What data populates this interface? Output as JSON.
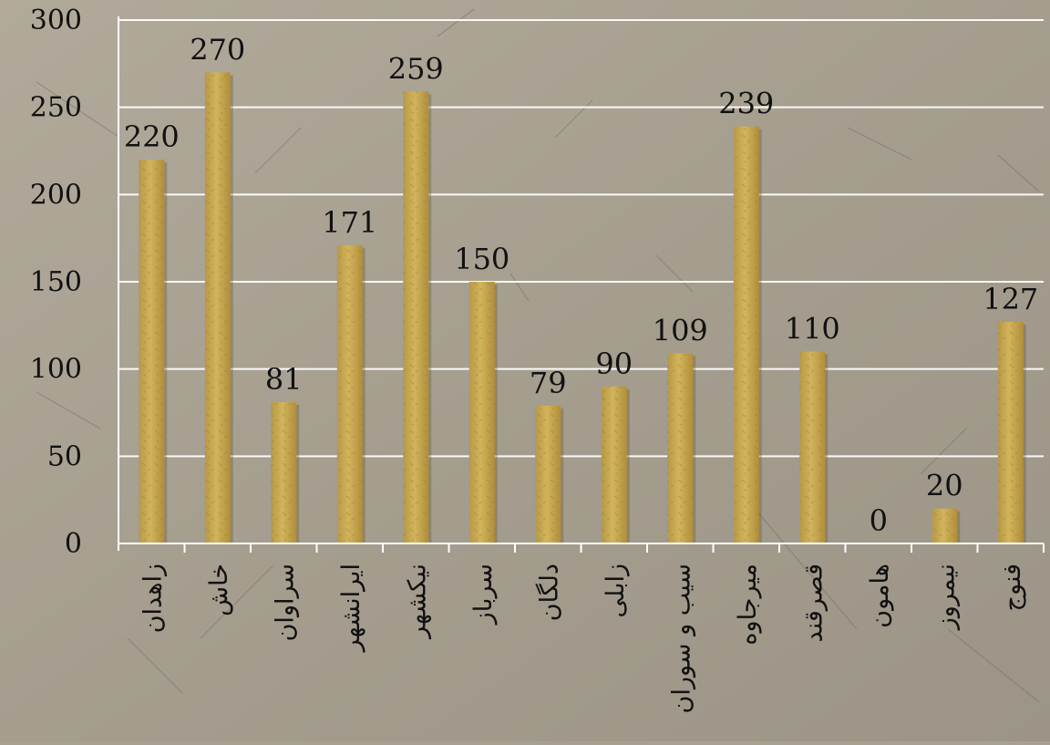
{
  "chart_data": {
    "type": "bar",
    "categories": [
      "زاهدان",
      "خاش",
      "سراوان",
      "ایرانشهر",
      "نیکشهر",
      "سرباز",
      "دلگان",
      "زابلی",
      "سیب و سوران",
      "میرجاوه",
      "قصرقند",
      "هامون",
      "نیمروز",
      "فنوج"
    ],
    "values": [
      220,
      270,
      81,
      171,
      259,
      150,
      79,
      90,
      109,
      239,
      110,
      0,
      20,
      127
    ],
    "title": "",
    "xlabel": "",
    "ylabel": "",
    "ylim": [
      0,
      300
    ],
    "yticks": [
      0,
      50,
      100,
      150,
      200,
      250,
      300
    ],
    "grid": true,
    "data_labels": true,
    "legend": "none"
  },
  "colors": {
    "background": "#a8a192",
    "bar": "#c9a94f",
    "bar_dark": "#a8883a",
    "grid": "#ffffff",
    "axis": "#ffffff",
    "text": "#111111"
  }
}
